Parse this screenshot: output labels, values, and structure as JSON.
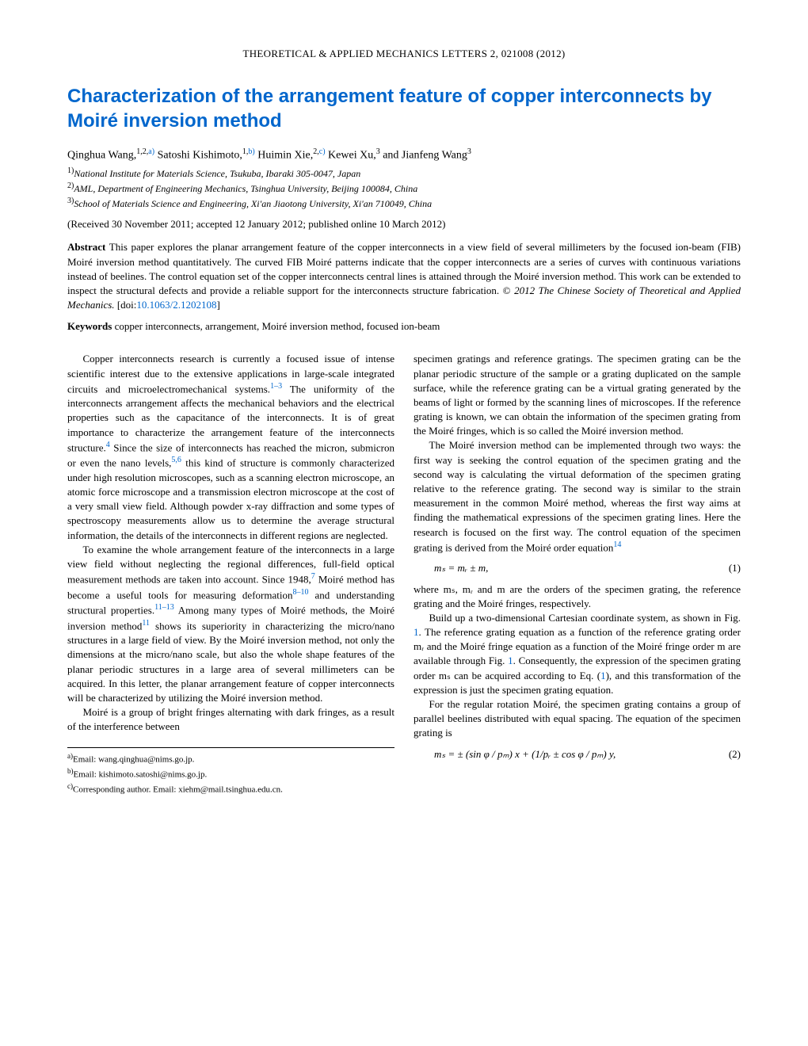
{
  "journal_header": "THEORETICAL & APPLIED MECHANICS LETTERS 2, 021008 (2012)",
  "title": "Characterization of the arrangement feature of copper interconnects by Moiré inversion method",
  "authors_html": "Qinghua Wang,",
  "author_sup_1": "1,2,",
  "author_sup_1_link": "a)",
  "author_2": " Satoshi Kishimoto,",
  "author_sup_2": "1,",
  "author_sup_2_link": "b)",
  "author_3": " Huimin Xie,",
  "author_sup_3": "2,",
  "author_sup_3_link": "c)",
  "author_4": " Kewei Xu,",
  "author_sup_4": "3",
  "author_5": " and Jianfeng Wang",
  "author_sup_5": "3",
  "affiliations": {
    "a1_sup": "1)",
    "a1": "National Institute for Materials Science, Tsukuba, Ibaraki 305-0047, Japan",
    "a2_sup": "2)",
    "a2": "AML, Department of Engineering Mechanics, Tsinghua University, Beijing 100084, China",
    "a3_sup": "3)",
    "a3": "School of Materials Science and Engineering, Xi'an Jiaotong University, Xi'an 710049, China"
  },
  "received": "(Received 30 November 2011; accepted 12 January 2012; published online 10 March 2012)",
  "abstract_label": "Abstract",
  "abstract_text": " This paper explores the planar arrangement feature of the copper interconnects in a view field of several millimeters by the focused ion-beam (FIB) Moiré inversion method quantitatively. The curved FIB Moiré patterns indicate that the copper interconnects are a series of curves with continuous variations instead of beelines. The control equation set of the copper interconnects central lines is attained through the Moiré inversion method. This work can be extended to inspect the structural defects and provide a reliable support for the interconnects structure fabrication. © ",
  "abstract_copyright": "2012 The Chinese Society of Theoretical and Applied Mechanics.",
  "doi_label": " [doi:",
  "doi": "10.1063/2.1202108",
  "doi_close": "]",
  "keywords_label": "Keywords",
  "keywords_text": " copper interconnects, arrangement, Moiré inversion method, focused ion-beam",
  "col1": {
    "p1a": "Copper interconnects research is currently a focused issue of intense scientific interest due to the extensive applications in large-scale integrated circuits and microelectromechanical systems.",
    "c1": "1–3",
    "p1b": " The uniformity of the interconnects arrangement affects the mechanical behaviors and the electrical properties such as the capacitance of the interconnects. It is of great importance to characterize the arrangement feature of the interconnects structure.",
    "c2": "4",
    "p1c": " Since the size of interconnects has reached the micron, submicron or even the nano levels,",
    "c3": "5,6",
    "p1d": " this kind of structure is commonly characterized under high resolution microscopes, such as a scanning electron microscope, an atomic force microscope and a transmission electron microscope at the cost of a very small view field. Although powder x-ray diffraction and some types of spectroscopy measurements allow us to determine the average structural information, the details of the interconnects in different regions are neglected.",
    "p2a": "To examine the whole arrangement feature of the interconnects in a large view field without neglecting the regional differences, full-field optical measurement methods are taken into account. Since 1948,",
    "c4": "7",
    "p2b": " Moiré method has become a useful tools for measuring deformation",
    "c5": "8–10",
    "p2c": " and understanding structural properties.",
    "c6": "11–13",
    "p2d": " Among many types of Moiré methods, the Moiré inversion method",
    "c7": "11",
    "p2e": " shows its superiority in characterizing the micro/nano structures in a large field of view. By the Moiré inversion method, not only the dimensions at the micro/nano scale, but also the whole shape features of the planar periodic structures in a large area of several millimeters can be acquired. In this letter, the planar arrangement feature of copper interconnects will be characterized by utilizing the Moiré inversion method.",
    "p3": "Moiré is a group of bright fringes alternating with dark fringes, as a result of the interference between"
  },
  "col2": {
    "p1": "specimen gratings and reference gratings. The specimen grating can be the planar periodic structure of the sample or a grating duplicated on the sample surface, while the reference grating can be a virtual grating generated by the beams of light or formed by the scanning lines of microscopes. If the reference grating is known, we can obtain the information of the specimen grating from the Moiré fringes, which is so called the Moiré inversion method.",
    "p2a": "The Moiré inversion method can be implemented through two ways: the first way is seeking the control equation of the specimen grating and the second way is calculating the virtual deformation of the specimen grating relative to the reference grating. The second way is similar to the strain measurement in the common Moiré method, whereas the first way aims at finding the mathematical expressions of the specimen grating lines. Here the research is focused on the first way. The control equation of the specimen grating is derived from the Moiré order equation",
    "c8": "14",
    "eq1": "mₛ = mᵣ ± m,",
    "eq1_num": "(1)",
    "p3": "where mₛ, mᵣ and m are the orders of the specimen grating, the reference grating and the Moiré fringes, respectively.",
    "p4a": "Build up a two-dimensional Cartesian coordinate system, as shown in Fig. ",
    "fig1a": "1",
    "p4b": ". The reference grating equation as a function of the reference grating order mᵣ and the Moiré fringe equation as a function of the Moiré fringe order m are available through Fig. ",
    "fig1b": "1",
    "p4c": ". Consequently, the expression of the specimen grating order mₛ can be acquired according to Eq. (",
    "eq1ref": "1",
    "p4d": "), and this transformation of the expression is just the specimen grating equation.",
    "p5": "For the regular rotation Moiré, the specimen grating contains a group of parallel beelines distributed with equal spacing. The equation of the specimen grating is",
    "eq2": "mₛ = ± (sin φ / pₘ) x + (1/pᵣ ± cos φ / pₘ) y,",
    "eq2_num": "(2)"
  },
  "footnotes": {
    "fa_sup": "a)",
    "fa": "Email: wang.qinghua@nims.go.jp.",
    "fb_sup": "b)",
    "fb": "Email: kishimoto.satoshi@nims.go.jp.",
    "fc_sup": "c)",
    "fc": "Corresponding author. Email: xiehm@mail.tsinghua.edu.cn."
  },
  "colors": {
    "link": "#0066cc",
    "text": "#000000",
    "bg": "#ffffff"
  }
}
